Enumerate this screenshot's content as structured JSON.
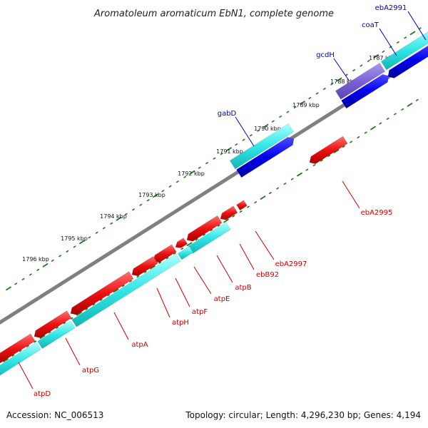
{
  "title": "Aromatoleum aromaticum EbN1, complete genome",
  "accession": "Accession: NC_006513",
  "topology": "Topology: circular; Length: 4,296,230 bp; Genes: 4,194",
  "kbp_labels": [
    "1787 kbp",
    "1788 kbp",
    "1789 kbp",
    "1790 kbp",
    "1791 kbp",
    "1792 kbp",
    "1793 kbp",
    "1794 kbp",
    "1795 kbp",
    "1796 kbp"
  ],
  "gene_labels": {
    "ebA2991": "ebA2991",
    "coaT": "coaT",
    "gcdH": "gcdH",
    "gabD": "gabD",
    "ebA2995": "ebA2995",
    "ebA2997": "ebA2997",
    "ebB92": "ebB92",
    "atpB": "atpB",
    "atpE": "atpE",
    "atpF": "atpF",
    "atpH": "atpH",
    "atpA": "atpA",
    "atpG": "atpG",
    "atpD": "atpD"
  },
  "colors": {
    "backbone": "#808080",
    "cyan": "#33e6e6",
    "blue": "#0000ee",
    "purple": "#7a62d6",
    "red": "#ee1111",
    "tick": "#1a7a1a",
    "label_blue": "#0000bb",
    "label_red": "#cc0000"
  }
}
